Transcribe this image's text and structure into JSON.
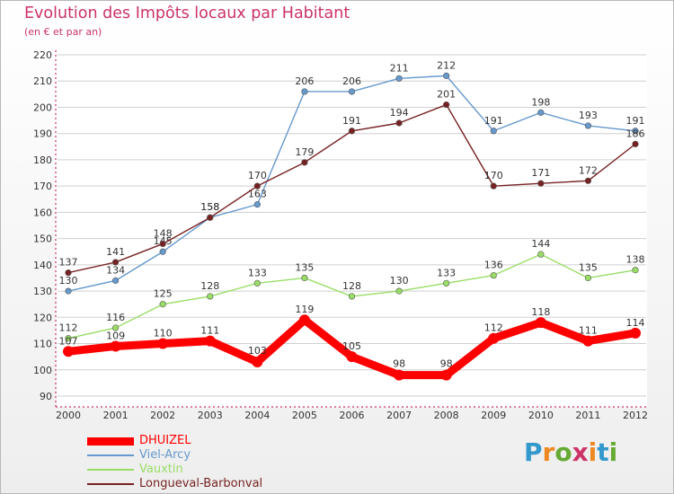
{
  "title": "Evolution des Impôts locaux par Habitant",
  "subtitle": "(en € et par an)",
  "logo": "Proxiti",
  "chart_data": {
    "type": "line",
    "title": "Evolution des Impôts locaux par Habitant",
    "subtitle": "(en € et par an)",
    "xlabel": "",
    "ylabel": "",
    "x": [
      "2000",
      "2001",
      "2002",
      "2003",
      "2004",
      "2005",
      "2006",
      "2007",
      "2008",
      "2009",
      "2010",
      "2011",
      "2012"
    ],
    "ylim": [
      90,
      220
    ],
    "yticks": [
      90,
      100,
      110,
      120,
      130,
      140,
      150,
      160,
      170,
      180,
      190,
      200,
      210,
      220
    ],
    "grid": "horizontal",
    "legend_position": "bottom-left",
    "series": [
      {
        "name": "DHUIZEL",
        "color": "#ff0000",
        "values": [
          107,
          109,
          110,
          111,
          103,
          119,
          105,
          98,
          98,
          112,
          118,
          111,
          114
        ]
      },
      {
        "name": "Viel-Arcy",
        "color": "#6699cc",
        "values": [
          130,
          134,
          145,
          158,
          163,
          206,
          206,
          211,
          212,
          191,
          198,
          193,
          191
        ]
      },
      {
        "name": "Vauxtin",
        "color": "#99dd66",
        "values": [
          112,
          116,
          125,
          128,
          133,
          135,
          128,
          130,
          133,
          136,
          144,
          135,
          138
        ]
      },
      {
        "name": "Longueval-Barbonval",
        "color": "#772222",
        "values": [
          137,
          141,
          148,
          158,
          170,
          179,
          191,
          194,
          201,
          170,
          171,
          172,
          186
        ]
      }
    ]
  }
}
